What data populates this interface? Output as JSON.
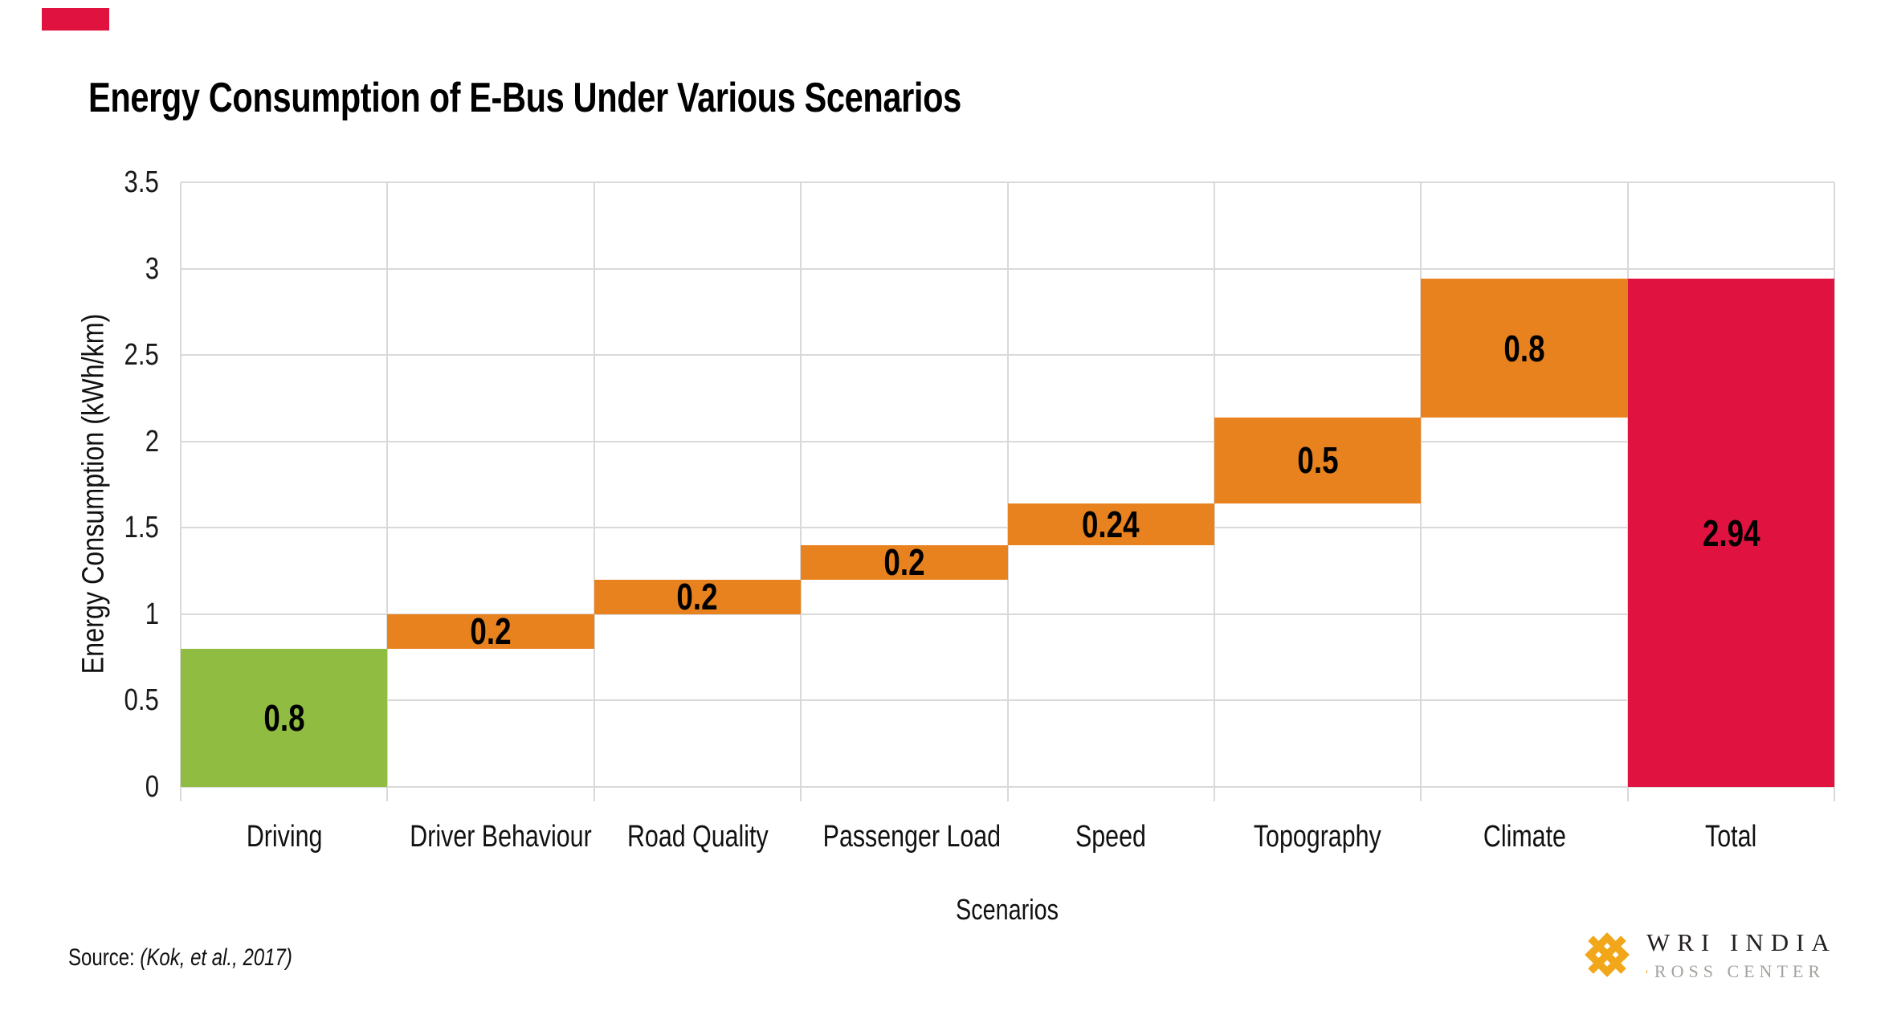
{
  "page": {
    "title": "Energy Consumption of E-Bus Under Various Scenarios"
  },
  "accent_bar_color": "#E01240",
  "chart_data": {
    "type": "bar",
    "subtype": "waterfall",
    "title": "Energy Consumption of E-Bus Under Various Scenarios",
    "xlabel": "Scenarios",
    "ylabel": "Energy Consumption (kWh/km)",
    "ylim": [
      0,
      3.5
    ],
    "ytick_step": 0.5,
    "yticks": [
      "0",
      "0.5",
      "1",
      "1.5",
      "2",
      "2.5",
      "3",
      "3.5"
    ],
    "grid": true,
    "categories": [
      "Driving",
      "Driver Behaviour",
      "Road Quality",
      "Passenger Load",
      "Speed",
      "Topography",
      "Climate",
      "Total"
    ],
    "bars": [
      {
        "category": "Driving",
        "start": 0,
        "end": 0.8,
        "label": "0.8",
        "role": "base"
      },
      {
        "category": "Driver Behaviour",
        "start": 0.8,
        "end": 1.0,
        "label": "0.2",
        "role": "increment"
      },
      {
        "category": "Road Quality",
        "start": 1.0,
        "end": 1.2,
        "label": "0.2",
        "role": "increment"
      },
      {
        "category": "Passenger Load",
        "start": 1.2,
        "end": 1.4,
        "label": "0.2",
        "role": "increment"
      },
      {
        "category": "Speed",
        "start": 1.4,
        "end": 1.64,
        "label": "0.24",
        "role": "increment"
      },
      {
        "category": "Topography",
        "start": 1.64,
        "end": 2.14,
        "label": "0.5",
        "role": "increment"
      },
      {
        "category": "Climate",
        "start": 2.14,
        "end": 2.94,
        "label": "0.8",
        "role": "increment"
      },
      {
        "category": "Total",
        "start": 0,
        "end": 2.94,
        "label": "2.94",
        "role": "total"
      }
    ],
    "colors": {
      "base": "#8FBC41",
      "increment": "#E8821E",
      "total": "#E01240",
      "gridline": "#D9D9D9"
    },
    "legend": "none"
  },
  "source": {
    "prefix": "Source: ",
    "citation": "(Kok, et al., 2017)"
  },
  "logo": {
    "org": "WRI INDIA",
    "center": "ROSS CENTER",
    "mark_color": "#F2A71B",
    "dash_color": "#F5A21B",
    "org_color": "#231F20",
    "center_color": "#A5A29E"
  }
}
